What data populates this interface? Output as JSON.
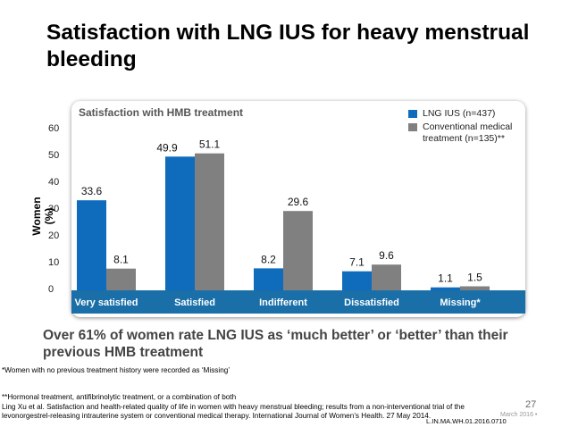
{
  "slide": {
    "title": "Satisfaction with LNG IUS for heavy menstrual bleeding",
    "conclusion": "Over 61% of women rate LNG IUS as ‘much better’ or ‘better’ than their previous HMB treatment",
    "footnotes": [
      "*Women with no previous treatment history were recorded as ‘Missing’",
      "**Hormonal treatment, antifibrinolytic treatment, or a combination of both",
      "Ling Xu et al.  Satisfaction and health-related quality of life in women with heavy menstrual bleeding; results from a non-interventional trial of the",
      "levonorgestrel-releasing intrauterine system or conventional medical therapy. International Journal of Women’s Health. 27 May 2014."
    ],
    "page_number": "27",
    "date": "March 2016 •",
    "doc_code": "L.IN.MA.WH.01.2016.0710"
  },
  "chart_data": {
    "type": "bar",
    "title": "Satisfaction with HMB treatment",
    "xlabel": "",
    "ylabel": "Women (%)",
    "ylim": [
      0,
      60
    ],
    "yticks": [
      0,
      10,
      20,
      30,
      40,
      50,
      60
    ],
    "grid": false,
    "legend_position": "top-right",
    "categories": [
      "Very satisfied",
      "Satisfied",
      "Indifferent",
      "Dissatisfied",
      "Missing*"
    ],
    "series": [
      {
        "name": "LNG IUS (n=437)",
        "color": "#0f6cbd",
        "values": [
          33.6,
          49.9,
          8.2,
          7.1,
          1.1
        ]
      },
      {
        "name": "Conventional medical treatment (n=135)**",
        "color": "#808080",
        "values": [
          8.1,
          51.1,
          29.6,
          9.6,
          1.5
        ]
      }
    ],
    "category_band_color": "#1a6fa8"
  }
}
